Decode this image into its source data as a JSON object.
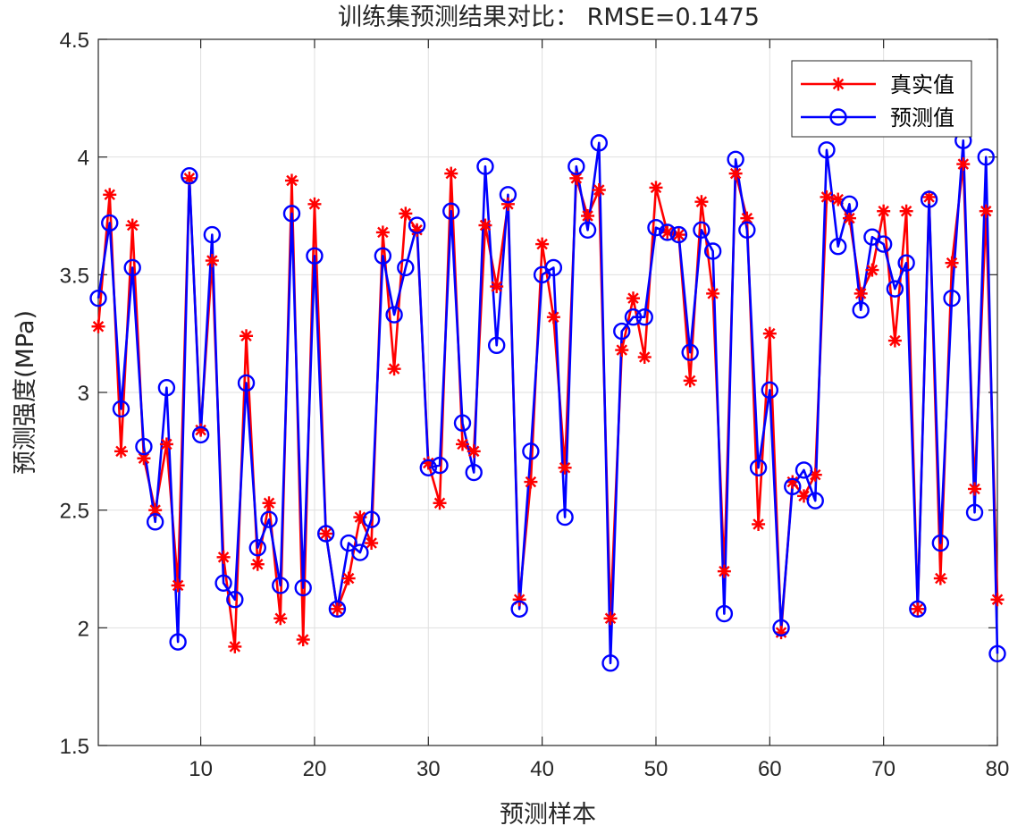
{
  "chart_data": {
    "type": "line",
    "title": "训练集预测结果对比： RMSE=0.1475",
    "xlabel": "预测样本",
    "ylabel": "预测强度(MPa)",
    "xlim": [
      1,
      80
    ],
    "ylim": [
      1.5,
      4.5
    ],
    "xticks": [
      10,
      20,
      30,
      40,
      50,
      60,
      70,
      80
    ],
    "yticks": [
      1.5,
      2,
      2.5,
      3,
      3.5,
      4,
      4.5
    ],
    "ytick_labels": [
      "1.5",
      "2",
      "2.5",
      "3",
      "3.5",
      "4",
      "4.5"
    ],
    "grid": true,
    "legend_position": "top-right",
    "x": [
      1,
      2,
      3,
      4,
      5,
      6,
      7,
      8,
      9,
      10,
      11,
      12,
      13,
      14,
      15,
      16,
      17,
      18,
      19,
      20,
      21,
      22,
      23,
      24,
      25,
      26,
      27,
      28,
      29,
      30,
      31,
      32,
      33,
      34,
      35,
      36,
      37,
      38,
      39,
      40,
      41,
      42,
      43,
      44,
      45,
      46,
      47,
      48,
      49,
      50,
      51,
      52,
      53,
      54,
      55,
      56,
      57,
      58,
      59,
      60,
      61,
      62,
      63,
      64,
      65,
      66,
      67,
      68,
      69,
      70,
      71,
      72,
      73,
      74,
      75,
      76,
      77,
      78,
      79,
      80
    ],
    "series": [
      {
        "name": "真实值",
        "color": "#ff0000",
        "marker": "asterisk",
        "values": [
          3.28,
          3.84,
          2.75,
          3.71,
          2.72,
          2.5,
          2.78,
          2.18,
          3.91,
          2.84,
          3.56,
          2.3,
          1.92,
          3.24,
          2.27,
          2.53,
          2.04,
          3.9,
          1.95,
          3.8,
          2.4,
          2.08,
          2.21,
          2.47,
          2.36,
          3.68,
          3.1,
          3.76,
          3.69,
          2.7,
          2.53,
          3.93,
          2.78,
          2.75,
          3.71,
          3.45,
          3.8,
          2.12,
          2.62,
          3.63,
          3.32,
          2.68,
          3.91,
          3.75,
          3.86,
          2.04,
          3.18,
          3.4,
          3.15,
          3.87,
          3.68,
          3.67,
          3.05,
          3.81,
          3.42,
          2.24,
          3.93,
          3.74,
          2.44,
          3.25,
          1.98,
          2.62,
          2.56,
          2.65,
          3.83,
          3.82,
          3.74,
          3.42,
          3.52,
          3.77,
          3.22,
          3.77,
          2.08,
          3.83,
          2.21,
          3.55,
          3.97,
          2.59,
          3.77,
          2.12
        ]
      },
      {
        "name": "预测值",
        "color": "#0000ff",
        "marker": "circle",
        "values": [
          3.4,
          3.72,
          2.93,
          3.53,
          2.77,
          2.45,
          3.02,
          1.94,
          3.92,
          2.82,
          3.67,
          2.19,
          2.12,
          3.04,
          2.34,
          2.46,
          2.18,
          3.76,
          2.17,
          3.58,
          2.4,
          2.08,
          2.36,
          2.32,
          2.46,
          3.58,
          3.33,
          3.53,
          3.71,
          2.68,
          2.69,
          3.77,
          2.87,
          2.66,
          3.96,
          3.2,
          3.84,
          2.08,
          2.75,
          3.5,
          3.53,
          2.47,
          3.96,
          3.69,
          4.06,
          1.85,
          3.26,
          3.32,
          3.32,
          3.7,
          3.68,
          3.67,
          3.17,
          3.69,
          3.6,
          2.06,
          3.99,
          3.69,
          2.68,
          3.01,
          2.0,
          2.6,
          2.67,
          2.54,
          4.03,
          3.62,
          3.8,
          3.35,
          3.66,
          3.63,
          3.44,
          3.55,
          2.08,
          3.82,
          2.36,
          3.4,
          4.07,
          2.49,
          4.0,
          1.89
        ]
      }
    ]
  }
}
